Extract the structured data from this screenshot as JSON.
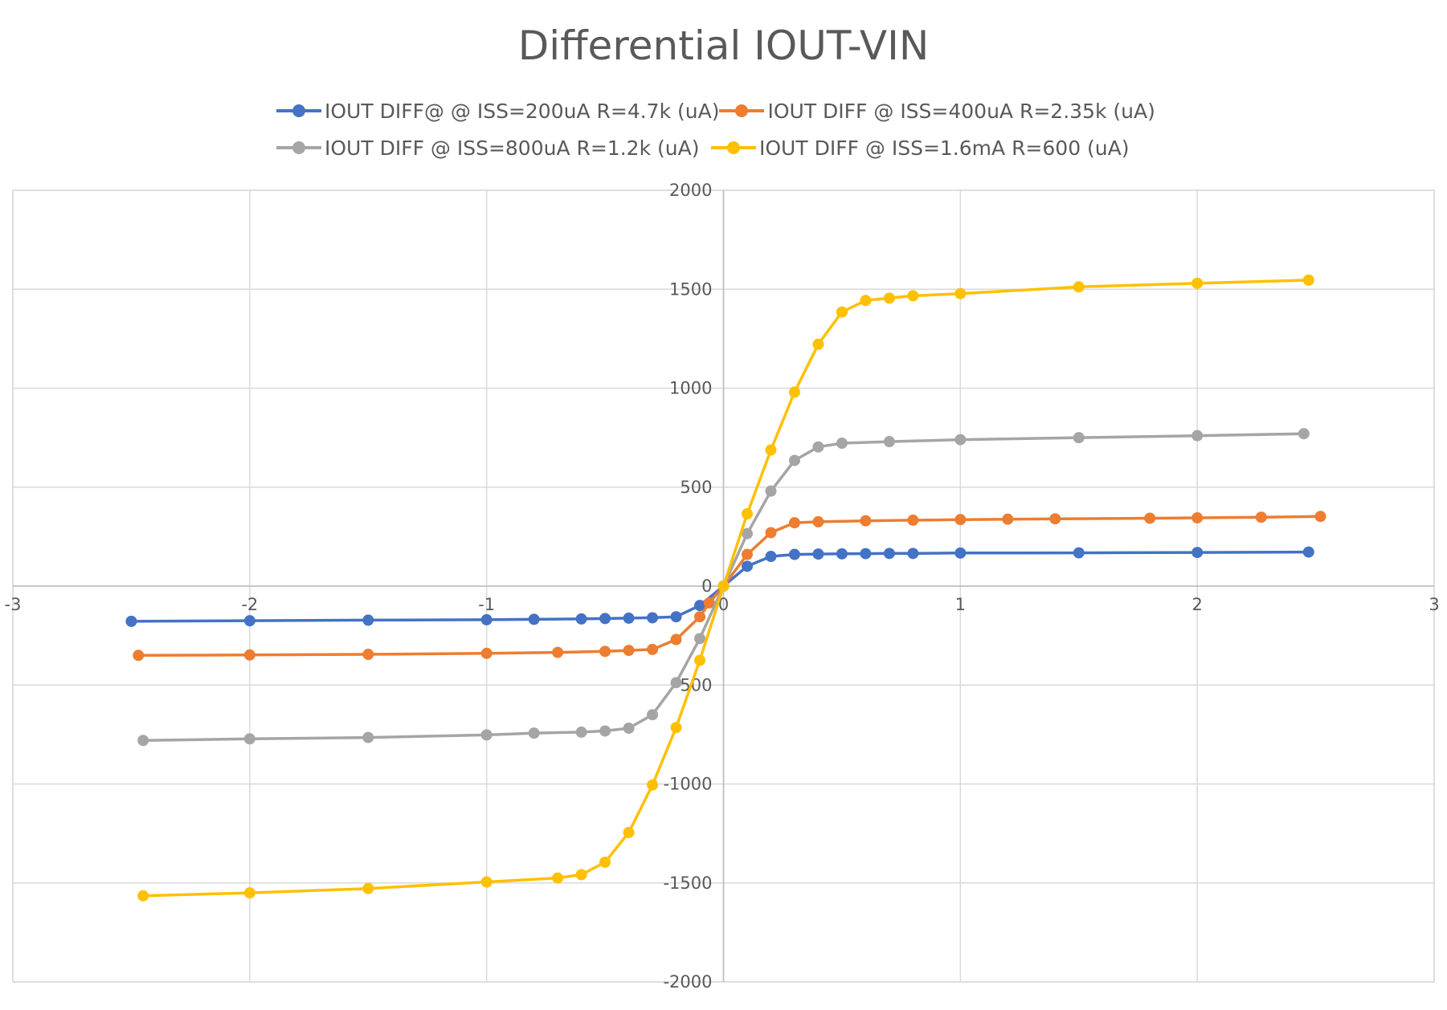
{
  "chart_data": {
    "type": "scatter",
    "title": "Differential IOUT-VIN",
    "xlabel": "",
    "ylabel": "",
    "xlim": [
      -3,
      3
    ],
    "ylim": [
      -2000,
      2000
    ],
    "x_ticks": [
      -3,
      -2,
      -1,
      0,
      1,
      2,
      3
    ],
    "y_ticks": [
      2000,
      1500,
      1000,
      500,
      0,
      -500,
      -1000,
      -1500,
      -2000
    ],
    "grid": true,
    "legend_position": "top",
    "lines_with_markers": true,
    "series": [
      {
        "name": "IOUT DIFF@ @ ISS=200uA R=4.7k (uA)",
        "color": "#4472C4",
        "x": [
          -2.5,
          -2.0,
          -1.5,
          -1.0,
          -0.8,
          -0.6,
          -0.5,
          -0.4,
          -0.3,
          -0.2,
          -0.1,
          0.0,
          0.1,
          0.2,
          0.3,
          0.4,
          0.5,
          0.6,
          0.7,
          0.8,
          1.0,
          1.5,
          2.0,
          2.47
        ],
        "y": [
          -178,
          -175,
          -172,
          -170,
          -168,
          -166,
          -164,
          -162,
          -160,
          -155,
          -98,
          0,
          100,
          150,
          160,
          162,
          163,
          164,
          165,
          165,
          167,
          168,
          170,
          172
        ]
      },
      {
        "name": "IOUT DIFF @ ISS=400uA R=2.35k (uA)",
        "color": "#ED7D31",
        "x": [
          -2.47,
          -2.0,
          -1.5,
          -1.0,
          -0.7,
          -0.5,
          -0.4,
          -0.3,
          -0.2,
          -0.1,
          -0.06,
          0.0,
          0.1,
          0.2,
          0.3,
          0.4,
          0.6,
          0.8,
          1.0,
          1.2,
          1.4,
          1.8,
          2.0,
          2.27,
          2.52
        ],
        "y": [
          -350,
          -348,
          -345,
          -340,
          -335,
          -330,
          -325,
          -320,
          -270,
          -155,
          -85,
          0,
          160,
          270,
          320,
          325,
          330,
          333,
          336,
          338,
          340,
          343,
          345,
          348,
          352
        ]
      },
      {
        "name": "IOUT DIFF @ ISS=800uA R=1.2k (uA)",
        "color": "#A5A5A5",
        "x": [
          -2.45,
          -2.0,
          -1.5,
          -1.0,
          -0.8,
          -0.6,
          -0.5,
          -0.4,
          -0.3,
          -0.2,
          -0.1,
          0.0,
          0.1,
          0.2,
          0.3,
          0.4,
          0.5,
          0.7,
          1.0,
          1.5,
          2.0,
          2.45
        ],
        "y": [
          -780,
          -772,
          -765,
          -752,
          -743,
          -738,
          -732,
          -718,
          -650,
          -488,
          -265,
          0,
          265,
          480,
          635,
          703,
          722,
          730,
          740,
          750,
          760,
          770
        ]
      },
      {
        "name": "IOUT DIFF @ ISS=1.6mA R=600 (uA)",
        "color": "#FFC000",
        "x": [
          -2.45,
          -2.0,
          -1.5,
          -1.0,
          -0.7,
          -0.6,
          -0.5,
          -0.4,
          -0.3,
          -0.2,
          -0.1,
          0.0,
          0.1,
          0.2,
          0.3,
          0.4,
          0.5,
          0.6,
          0.7,
          0.8,
          1.0,
          1.5,
          2.0,
          2.47
        ],
        "y": [
          -1565,
          -1550,
          -1528,
          -1495,
          -1475,
          -1458,
          -1395,
          -1245,
          -1005,
          -715,
          -375,
          0,
          365,
          688,
          980,
          1222,
          1385,
          1443,
          1455,
          1467,
          1478,
          1512,
          1530,
          1546
        ]
      }
    ]
  }
}
